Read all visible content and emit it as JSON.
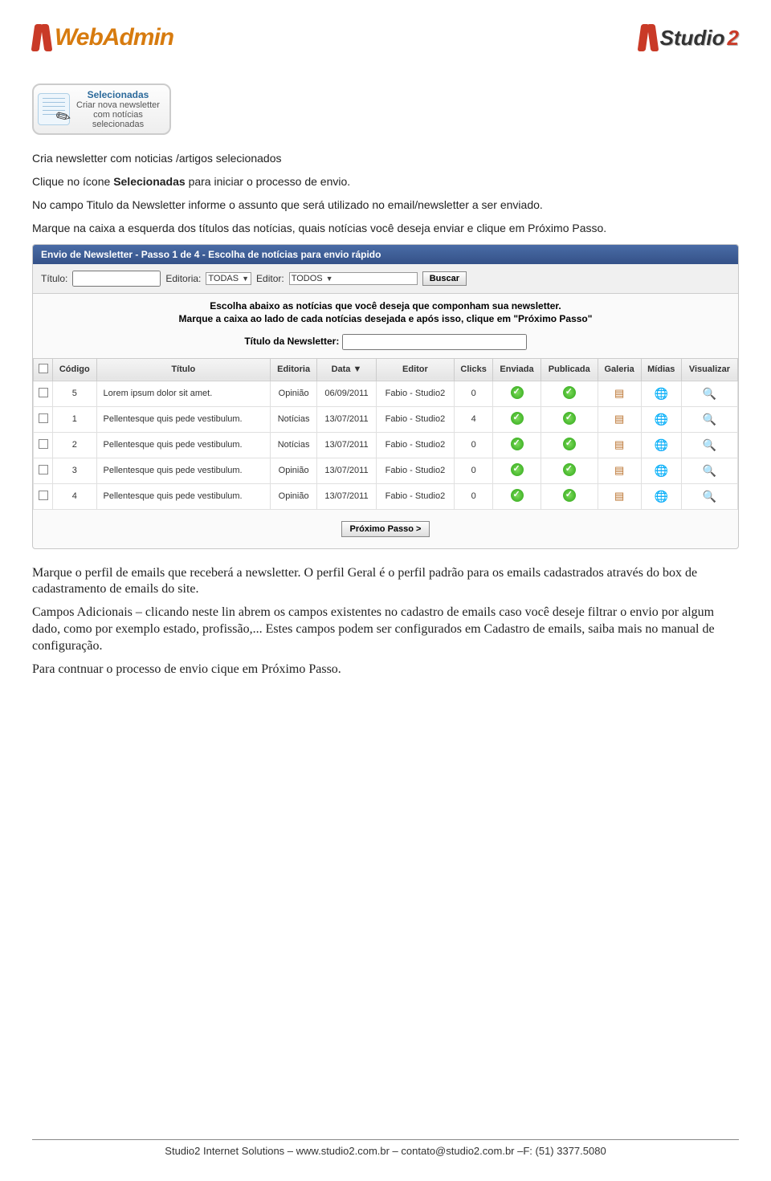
{
  "header": {
    "left_logo": "WebAdmin",
    "right_logo_a": "Studio",
    "right_logo_b": "2"
  },
  "selectbtn": {
    "title": "Selecionadas",
    "sub1": "Criar nova newsletter",
    "sub2": "com notícias",
    "sub3": "selecionadas"
  },
  "para": {
    "p1": "Cria newsletter com noticias /artigos  selecionados",
    "p2a": "Clique no ícone ",
    "p2b": "Selecionadas",
    "p2c": " para iniciar o processo de envio.",
    "p3": "No campo Titulo da Newsletter informe o assunto que será utilizado no email/newsletter a ser enviado.",
    "p4": "Marque na caixa a esquerda dos títulos das notícias, quais notícias você deseja enviar e clique em Próximo Passo."
  },
  "panel": {
    "header": "Envio de Newsletter - Passo 1 de 4 - Escolha de notícias para envio rápido",
    "filter": {
      "titulo_label": "Título:",
      "editoria_label": "Editoria:",
      "editoria_value": "TODAS",
      "editor_label": "Editor:",
      "editor_value": "TODOS",
      "buscar": "Buscar"
    },
    "instr1": "Escolha abaixo as notícias que você deseja que componham sua newsletter.",
    "instr2": "Marque a caixa ao lado de cada notícias desejada e após isso, clique em \"Próximo Passo\"",
    "titulo_news_label": "Título da Newsletter:",
    "columns": [
      "",
      "Código",
      "Título",
      "Editoria",
      "Data ▼",
      "Editor",
      "Clicks",
      "Enviada",
      "Publicada",
      "Galeria",
      "Mídias",
      "Visualizar"
    ],
    "rows": [
      {
        "codigo": "5",
        "titulo": "Lorem ipsum dolor sit amet.",
        "editoria": "Opinião",
        "data": "06/09/2011",
        "editor": "Fabio - Studio2",
        "clicks": "0"
      },
      {
        "codigo": "1",
        "titulo": "Pellentesque quis pede vestibulum.",
        "editoria": "Notícias",
        "data": "13/07/2011",
        "editor": "Fabio - Studio2",
        "clicks": "4"
      },
      {
        "codigo": "2",
        "titulo": "Pellentesque quis pede vestibulum.",
        "editoria": "Notícias",
        "data": "13/07/2011",
        "editor": "Fabio - Studio2",
        "clicks": "0"
      },
      {
        "codigo": "3",
        "titulo": "Pellentesque quis pede vestibulum.",
        "editoria": "Opinião",
        "data": "13/07/2011",
        "editor": "Fabio - Studio2",
        "clicks": "0"
      },
      {
        "codigo": "4",
        "titulo": "Pellentesque quis pede vestibulum.",
        "editoria": "Opinião",
        "data": "13/07/2011",
        "editor": "Fabio - Studio2",
        "clicks": "0"
      }
    ],
    "proximo": "Próximo Passo >"
  },
  "after": {
    "p1": "Marque o perfil de emails que receberá a newsletter. O perfil Geral é o perfil padrão para os emails cadastrados através do box de cadastramento de emails do site.",
    "p2": "Campos Adicionais – clicando neste lin abrem os campos existentes no cadastro de emails caso você deseje filtrar o envio por algum dado, como por exemplo estado, profissão,... Estes campos podem ser configurados em Cadastro de emails, saiba mais no manual de configuração.",
    "p3": "Para contnuar o processo de envio cique em Próximo Passo."
  },
  "footer": "Studio2 Internet Solutions – www.studio2.com.br – contato@studio2.com.br –F: (51) 3377.5080",
  "colors": {
    "accent_orange": "#d77b0f",
    "accent_red": "#c93a27",
    "panel_header": "#345188"
  }
}
